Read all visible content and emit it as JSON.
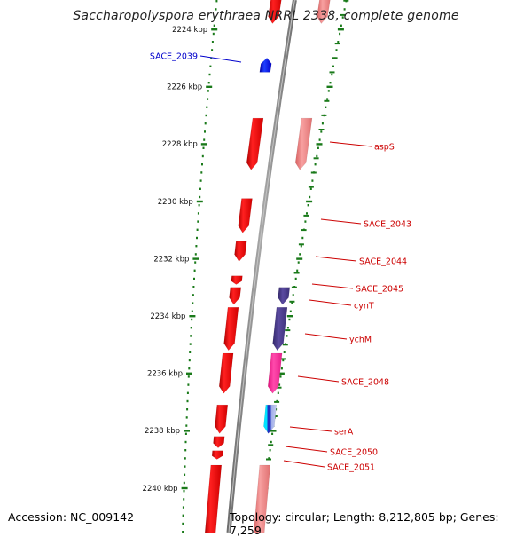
{
  "title": "Saccharopolyspora erythraea NRRL 2338, complete genome",
  "footer": {
    "accession": "Accession: NC_009142",
    "topology": "Topology: circular; Length: 8,212,805 bp; Genes: 7,259"
  },
  "colors": {
    "backbone": "#8c8c8c",
    "tick": "#1a7a1a",
    "feature_forward": "#ff0000",
    "feature_light": "#f08080",
    "feature_blue": "#0000ff",
    "feature_purple": "#4b3c8c",
    "feature_magenta": "#ff2a9a",
    "feature_cyan": "#00e5ff",
    "label_red": "#cc0000",
    "label_blue": "#0000cc"
  },
  "scale": {
    "unit": "kbp",
    "ticks": [
      {
        "kbp": 2224,
        "label": "2224 kbp"
      },
      {
        "kbp": 2226,
        "label": "2226 kbp"
      },
      {
        "kbp": 2228,
        "label": "2228 kbp"
      },
      {
        "kbp": 2230,
        "label": "2230 kbp"
      },
      {
        "kbp": 2232,
        "label": "2232 kbp"
      },
      {
        "kbp": 2234,
        "label": "2234 kbp"
      },
      {
        "kbp": 2236,
        "label": "2236 kbp"
      },
      {
        "kbp": 2238,
        "label": "2238 kbp"
      },
      {
        "kbp": 2240,
        "label": "2240 kbp"
      }
    ]
  },
  "genes": [
    {
      "name": "SACE_2039",
      "start": 2225.0,
      "end": 2225.5,
      "strand": "forward",
      "track": "inner",
      "color": "blue",
      "labeled": true
    },
    {
      "name": "",
      "start": 2222.8,
      "end": 2223.8,
      "strand": "reverse",
      "track": "inner",
      "color": "red",
      "labeled": false
    },
    {
      "name": "",
      "start": 2222.8,
      "end": 2223.8,
      "strand": "reverse",
      "track": "outer",
      "color": "lightred",
      "labeled": false
    },
    {
      "name": "aspS",
      "start": 2227.1,
      "end": 2228.9,
      "strand": "reverse",
      "track": "inner",
      "color": "red",
      "labeled": true
    },
    {
      "name": "",
      "start": 2227.1,
      "end": 2228.9,
      "strand": "reverse",
      "track": "outer",
      "color": "lightred",
      "labeled": false
    },
    {
      "name": "SACE_2043",
      "start": 2229.9,
      "end": 2231.1,
      "strand": "reverse",
      "track": "inner",
      "color": "red",
      "labeled": true
    },
    {
      "name": "SACE_2044",
      "start": 2231.4,
      "end": 2232.1,
      "strand": "reverse",
      "track": "inner",
      "color": "red",
      "labeled": true
    },
    {
      "name": "SACE_2045",
      "start": 2232.6,
      "end": 2232.9,
      "strand": "reverse",
      "track": "inner",
      "color": "red",
      "labeled": true
    },
    {
      "name": "cynT",
      "start": 2233.0,
      "end": 2233.6,
      "strand": "reverse",
      "track": "inner",
      "color": "red",
      "labeled": true
    },
    {
      "name": "",
      "start": 2233.0,
      "end": 2233.6,
      "strand": "reverse",
      "track": "outer",
      "color": "purple",
      "labeled": false
    },
    {
      "name": "ychM",
      "start": 2233.7,
      "end": 2235.2,
      "strand": "reverse",
      "track": "inner",
      "color": "red",
      "labeled": true
    },
    {
      "name": "",
      "start": 2233.7,
      "end": 2235.2,
      "strand": "reverse",
      "track": "outer",
      "color": "purple",
      "labeled": false
    },
    {
      "name": "SACE_2048",
      "start": 2235.3,
      "end": 2236.7,
      "strand": "reverse",
      "track": "inner",
      "color": "red",
      "labeled": true
    },
    {
      "name": "",
      "start": 2235.3,
      "end": 2236.7,
      "strand": "reverse",
      "track": "outer",
      "color": "magenta",
      "labeled": false
    },
    {
      "name": "serA",
      "start": 2237.1,
      "end": 2238.1,
      "strand": "reverse",
      "track": "inner",
      "color": "red",
      "labeled": true
    },
    {
      "name": "",
      "start": 2237.1,
      "end": 2238.1,
      "strand": "reverse",
      "track": "outer",
      "color": "cyanblue",
      "labeled": false
    },
    {
      "name": "SACE_2050",
      "start": 2238.2,
      "end": 2238.6,
      "strand": "reverse",
      "track": "inner",
      "color": "red",
      "labeled": true
    },
    {
      "name": "SACE_2051",
      "start": 2238.7,
      "end": 2239.0,
      "strand": "reverse",
      "track": "inner",
      "color": "red",
      "labeled": true
    },
    {
      "name": "",
      "start": 2239.2,
      "end": 2242.0,
      "strand": "reverse",
      "track": "inner",
      "color": "red",
      "labeled": false
    },
    {
      "name": "",
      "start": 2239.2,
      "end": 2242.0,
      "strand": "reverse",
      "track": "outer",
      "color": "lightred",
      "labeled": false
    }
  ]
}
